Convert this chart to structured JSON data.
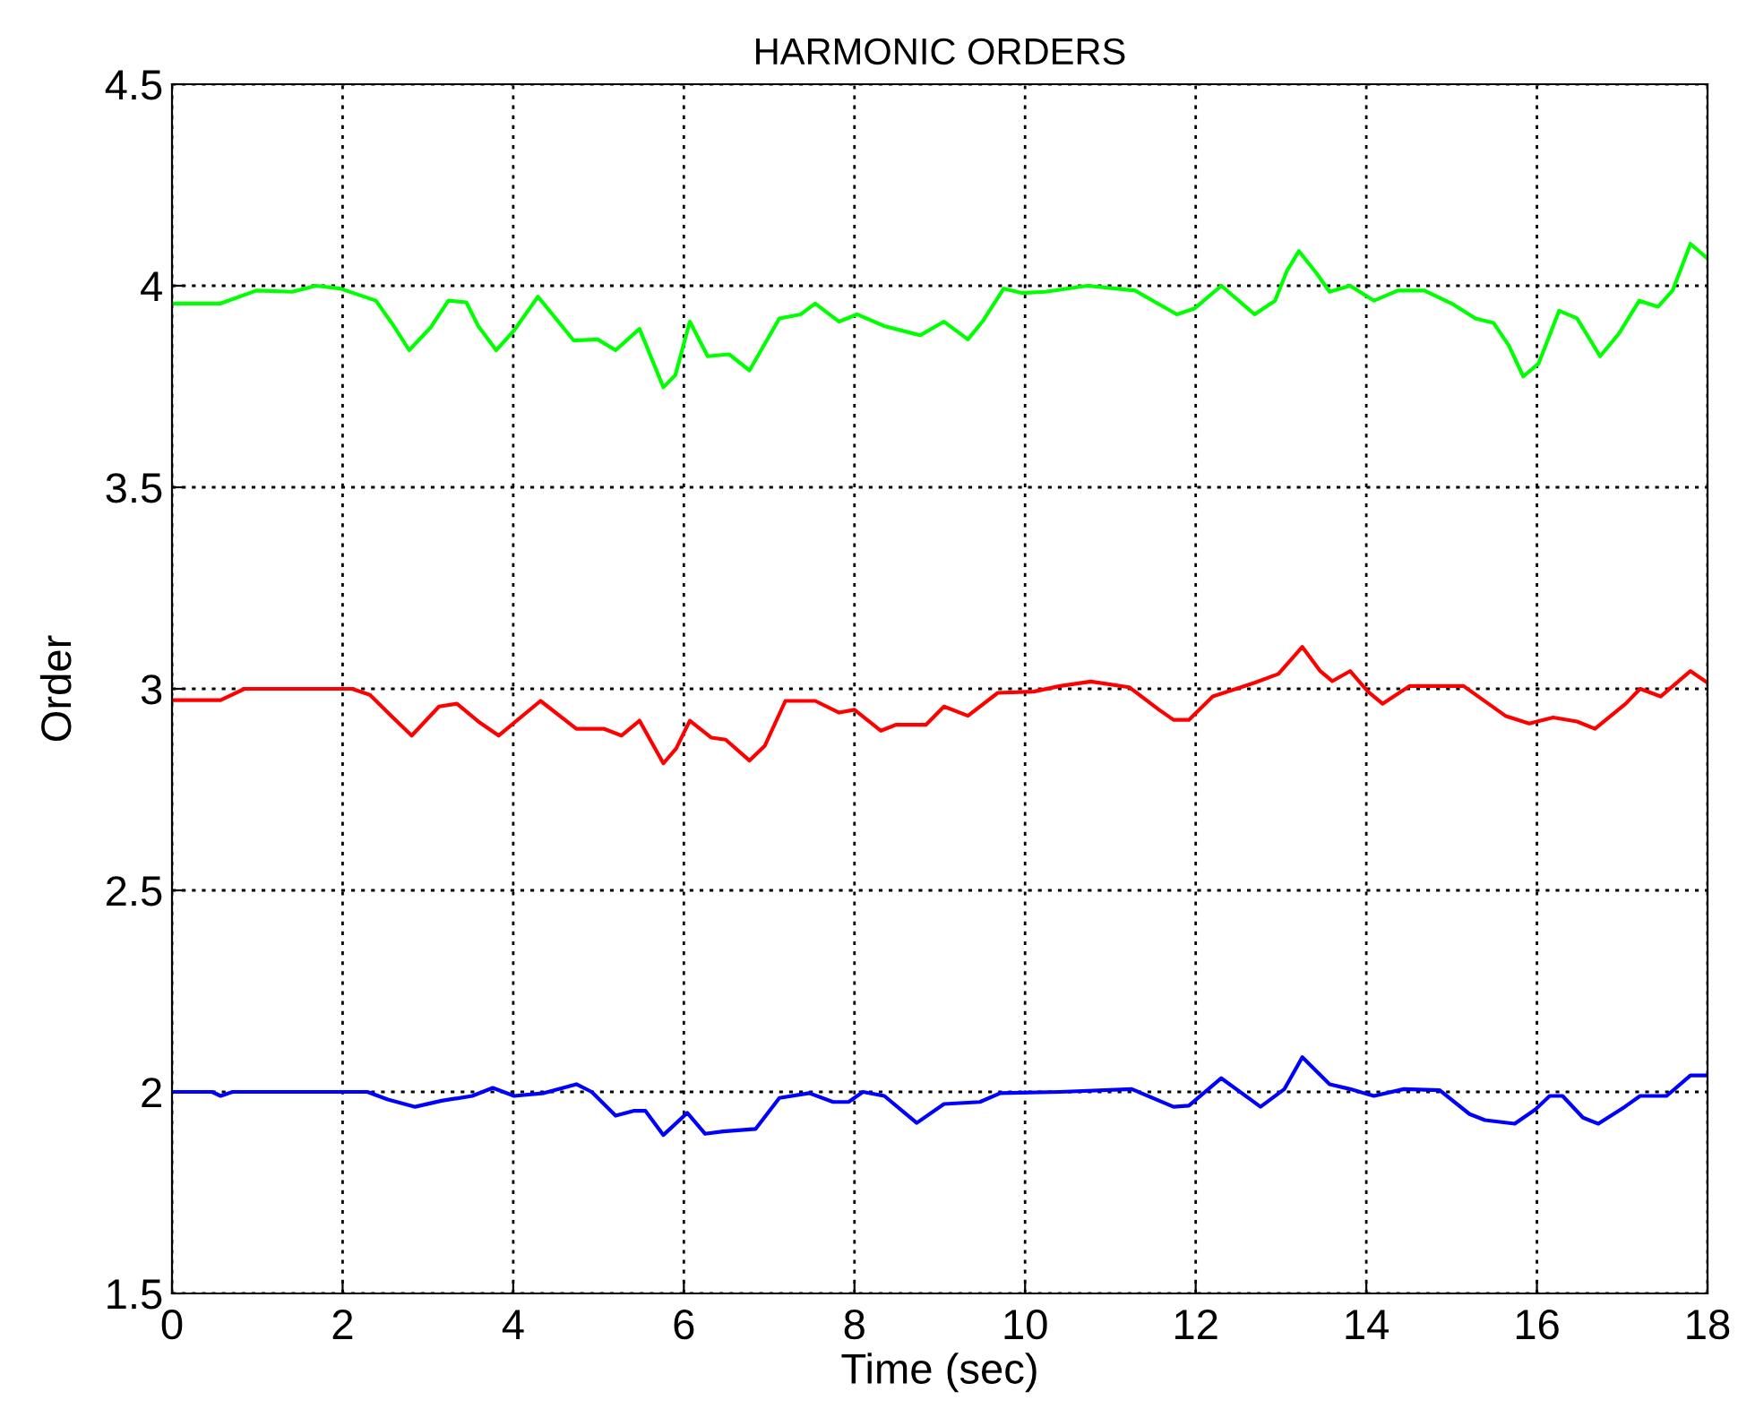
{
  "chart_data": {
    "type": "line",
    "title": "HARMONIC ORDERS",
    "xlabel": "Time (sec)",
    "ylabel": "Order",
    "xlim": [
      0,
      18
    ],
    "xticks": [
      0,
      2,
      4,
      6,
      8,
      10,
      12,
      14,
      16,
      18
    ],
    "ylim": [
      1.5,
      4.5
    ],
    "yticks": [
      1.5,
      2,
      2.5,
      3,
      3.5,
      4,
      4.5
    ],
    "grid": true,
    "marker": "none",
    "line_style": "solid",
    "series": [
      {
        "color": "#00ff00",
        "x": [
          0.01,
          0.57,
          0.99,
          1.41,
          1.69,
          1.97,
          2.39,
          2.6,
          2.78,
          3.03,
          3.24,
          3.45,
          3.59,
          3.8,
          4.01,
          4.29,
          4.71,
          4.99,
          5.2,
          5.48,
          5.76,
          5.9,
          6.07,
          6.28,
          6.53,
          6.77,
          7.12,
          7.37,
          7.54,
          7.82,
          8.03,
          8.35,
          8.77,
          9.05,
          9.33,
          9.5,
          9.75,
          9.96,
          10.24,
          10.73,
          11.29,
          11.78,
          11.99,
          12.3,
          12.69,
          12.93,
          13.07,
          13.21,
          13.42,
          13.57,
          13.81,
          14.09,
          14.37,
          14.68,
          15.0,
          15.28,
          15.49,
          15.67,
          15.84,
          16.02,
          16.26,
          16.47,
          16.74,
          16.96,
          17.2,
          17.42,
          17.59,
          17.8,
          18.0
        ],
        "values": [
          3.956,
          3.956,
          3.988,
          3.985,
          4.0,
          3.993,
          3.963,
          3.9,
          3.84,
          3.896,
          3.963,
          3.959,
          3.9,
          3.84,
          3.889,
          3.973,
          3.864,
          3.867,
          3.84,
          3.893,
          3.748,
          3.778,
          3.911,
          3.825,
          3.83,
          3.79,
          3.919,
          3.929,
          3.956,
          3.911,
          3.929,
          3.9,
          3.877,
          3.911,
          3.867,
          3.911,
          3.993,
          3.982,
          3.985,
          4.0,
          3.988,
          3.929,
          3.944,
          4.0,
          3.929,
          3.963,
          4.037,
          4.086,
          4.03,
          3.985,
          4.0,
          3.963,
          3.988,
          3.988,
          3.956,
          3.919,
          3.908,
          3.852,
          3.775,
          3.807,
          3.938,
          3.919,
          3.825,
          3.881,
          3.963,
          3.948,
          3.988,
          4.104,
          4.067
        ]
      },
      {
        "color": "#ff0000",
        "x": [
          0.01,
          0.57,
          0.85,
          2.11,
          2.32,
          2.57,
          2.81,
          3.13,
          3.34,
          3.59,
          3.83,
          4.32,
          4.74,
          5.06,
          5.27,
          5.48,
          5.76,
          5.91,
          6.07,
          6.32,
          6.49,
          6.77,
          6.95,
          7.19,
          7.54,
          7.82,
          8.0,
          8.31,
          8.49,
          8.84,
          9.05,
          9.33,
          9.68,
          10.1,
          10.41,
          10.77,
          11.22,
          11.57,
          11.74,
          11.92,
          12.2,
          12.69,
          12.97,
          13.25,
          13.46,
          13.6,
          13.81,
          14.02,
          14.19,
          14.51,
          14.79,
          15.14,
          15.63,
          15.91,
          16.19,
          16.47,
          16.68,
          17.04,
          17.21,
          17.45,
          17.8,
          18.0
        ],
        "values": [
          2.972,
          2.972,
          3.0,
          3.0,
          2.985,
          2.933,
          2.884,
          2.956,
          2.963,
          2.919,
          2.884,
          2.97,
          2.901,
          2.901,
          2.884,
          2.921,
          2.815,
          2.852,
          2.921,
          2.879,
          2.874,
          2.822,
          2.859,
          2.97,
          2.97,
          2.941,
          2.948,
          2.896,
          2.911,
          2.911,
          2.956,
          2.933,
          2.99,
          2.993,
          3.007,
          3.018,
          3.004,
          2.948,
          2.923,
          2.923,
          2.981,
          3.015,
          3.037,
          3.104,
          3.044,
          3.019,
          3.044,
          2.993,
          2.963,
          3.007,
          3.007,
          3.007,
          2.933,
          2.914,
          2.929,
          2.919,
          2.901,
          2.963,
          3.0,
          2.981,
          3.044,
          3.015
        ]
      },
      {
        "color": "#0000ff",
        "x": [
          0.01,
          0.47,
          0.57,
          0.71,
          2.29,
          2.53,
          2.85,
          3.16,
          3.52,
          3.76,
          4.01,
          4.36,
          4.74,
          4.92,
          5.2,
          5.41,
          5.55,
          5.76,
          6.04,
          6.25,
          6.46,
          6.84,
          7.12,
          7.47,
          7.75,
          7.93,
          8.1,
          8.35,
          8.73,
          9.05,
          9.47,
          9.71,
          10.41,
          11.25,
          11.74,
          11.92,
          12.3,
          12.76,
          13.04,
          13.25,
          13.57,
          13.81,
          14.09,
          14.44,
          14.86,
          15.21,
          15.39,
          15.74,
          15.98,
          16.15,
          16.3,
          16.54,
          16.72,
          17.03,
          17.21,
          17.52,
          17.8,
          18.0
        ],
        "values": [
          2.0,
          2.0,
          1.99,
          2.0,
          2.0,
          1.981,
          1.963,
          1.978,
          1.99,
          2.01,
          1.99,
          1.997,
          2.019,
          2.0,
          1.941,
          1.953,
          1.953,
          1.893,
          1.948,
          1.896,
          1.902,
          1.908,
          1.985,
          1.997,
          1.975,
          1.975,
          2.0,
          1.99,
          1.923,
          1.97,
          1.975,
          1.997,
          2.0,
          2.007,
          1.963,
          1.966,
          2.034,
          1.963,
          2.007,
          2.086,
          2.019,
          2.007,
          1.99,
          2.007,
          2.004,
          1.945,
          1.93,
          1.921,
          1.956,
          1.99,
          1.99,
          1.936,
          1.921,
          1.963,
          1.99,
          1.99,
          2.041,
          2.041
        ]
      }
    ]
  }
}
